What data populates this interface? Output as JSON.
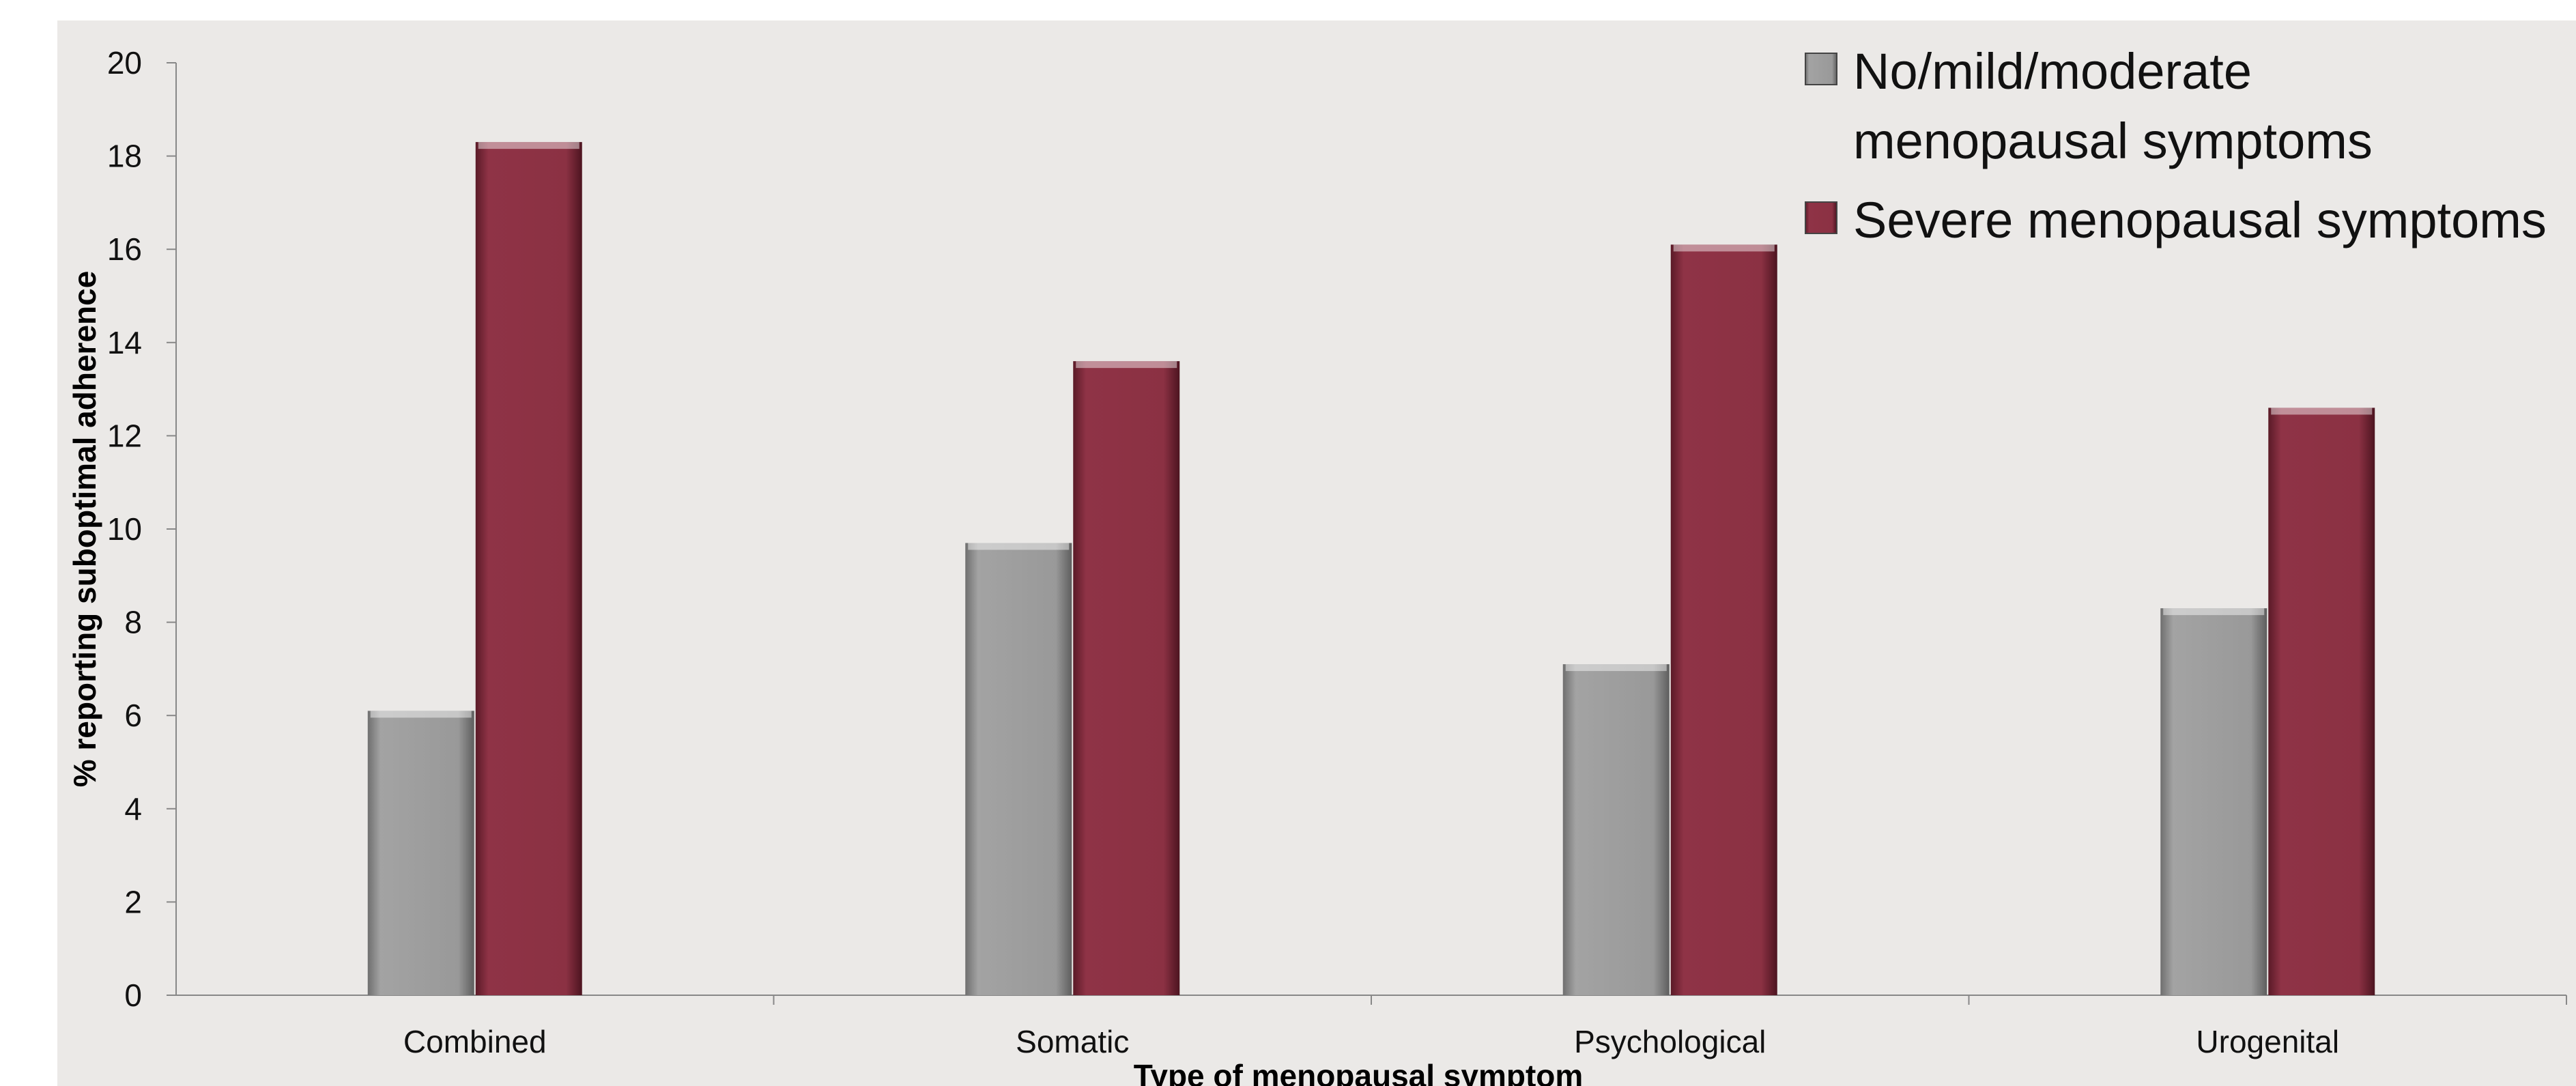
{
  "chart_data": {
    "type": "bar",
    "title": "",
    "xlabel": "Type of menopausal symptom",
    "ylabel": "% reporting suboptimal adherence",
    "ylim": [
      0,
      20
    ],
    "yticks": [
      "0",
      "2",
      "4",
      "6",
      "8",
      "10",
      "12",
      "14",
      "16",
      "18",
      "20"
    ],
    "categories": [
      "Combined",
      "Somatic",
      "Psychological",
      "Urogenital"
    ],
    "series": [
      {
        "name": "No/mild/moderate menopausal symptoms",
        "legend_lines": [
          "No/mild/moderate",
          "menopausal symptoms"
        ],
        "color": "#999999",
        "values": [
          6.1,
          9.7,
          7.1,
          8.3
        ]
      },
      {
        "name": "Severe menopausal symptoms",
        "legend_lines": [
          "Severe menopausal symptoms"
        ],
        "color": "#8b3143",
        "values": [
          18.3,
          13.6,
          16.1,
          12.6
        ]
      }
    ],
    "legend_position": "top-right",
    "grid": false
  }
}
